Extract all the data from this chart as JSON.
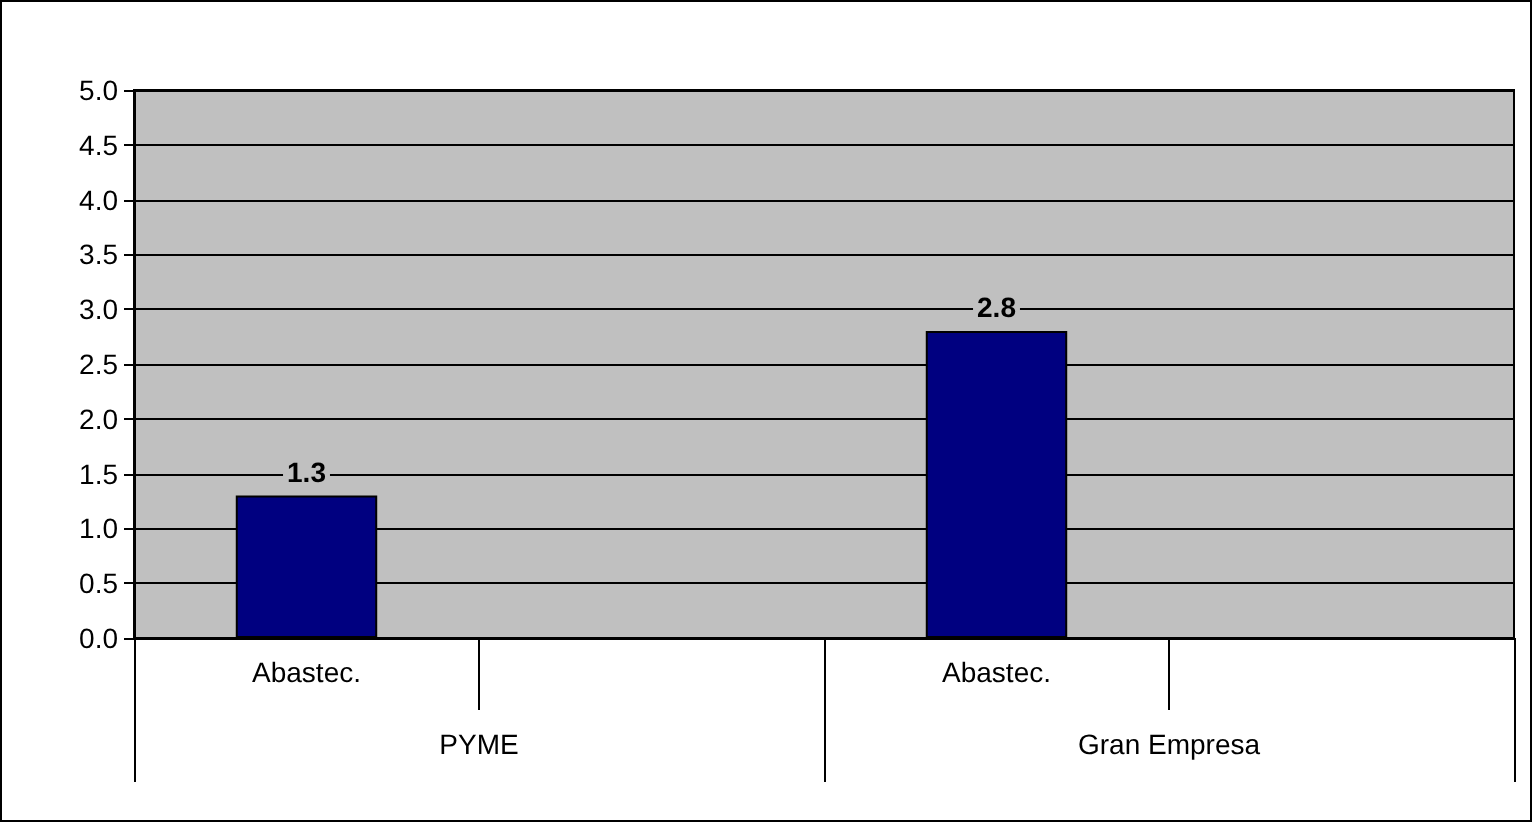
{
  "chart_data": {
    "type": "bar",
    "categories": [
      "Abastec.",
      null,
      "Abastec.",
      null
    ],
    "values": [
      1.3,
      null,
      2.8,
      null
    ],
    "color": "#000080",
    "ylim": [
      0,
      5
    ],
    "yticks": [
      {
        "value": 0,
        "label": "0.0"
      },
      {
        "value": 0.5,
        "label": "0.5"
      },
      {
        "value": 1,
        "label": "1.0"
      },
      {
        "value": 1.5,
        "label": "1.5"
      },
      {
        "value": 2,
        "label": "2.0"
      },
      {
        "value": 2.5,
        "label": "2.5"
      },
      {
        "value": 3,
        "label": "3.0"
      },
      {
        "value": 3.5,
        "label": "3.5"
      },
      {
        "value": 4,
        "label": "4.0"
      },
      {
        "value": 4.5,
        "label": "4.5"
      },
      {
        "value": 5,
        "label": "5.0"
      }
    ],
    "grid": "y",
    "data_labels": true,
    "annotations": [
      "PYME",
      "Gran Empresa"
    ]
  }
}
